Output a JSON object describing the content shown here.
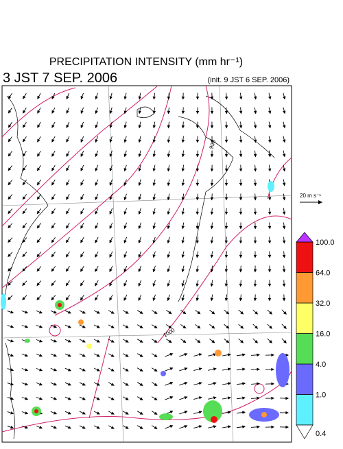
{
  "header": {
    "title": "PRECIPITATION INTENSITY (mm hr⁻¹)",
    "time": "3 JST 7 SEP. 2006",
    "init": "(init. 9 JST 6 SEP. 2006)"
  },
  "reference_vector": {
    "label": "20 m s⁻¹"
  },
  "contour_labels": [
    "996",
    "1000"
  ],
  "colorbar": {
    "levels": [
      {
        "value": 0.4,
        "label": "0.4"
      },
      {
        "value": 1,
        "label": "1.0"
      },
      {
        "value": 4,
        "label": "4.0"
      },
      {
        "value": 16,
        "label": "16.0"
      },
      {
        "value": 32,
        "label": "32.0"
      },
      {
        "value": 64,
        "label": "64.0"
      },
      {
        "value": 100,
        "label": "100.0"
      }
    ],
    "colors": [
      "#5ff0ff",
      "#6a6aff",
      "#55dd55",
      "#ffff66",
      "#ff9933",
      "#ee1111"
    ],
    "under_color": "#ffffff",
    "over_color": "#bb33ff"
  }
}
